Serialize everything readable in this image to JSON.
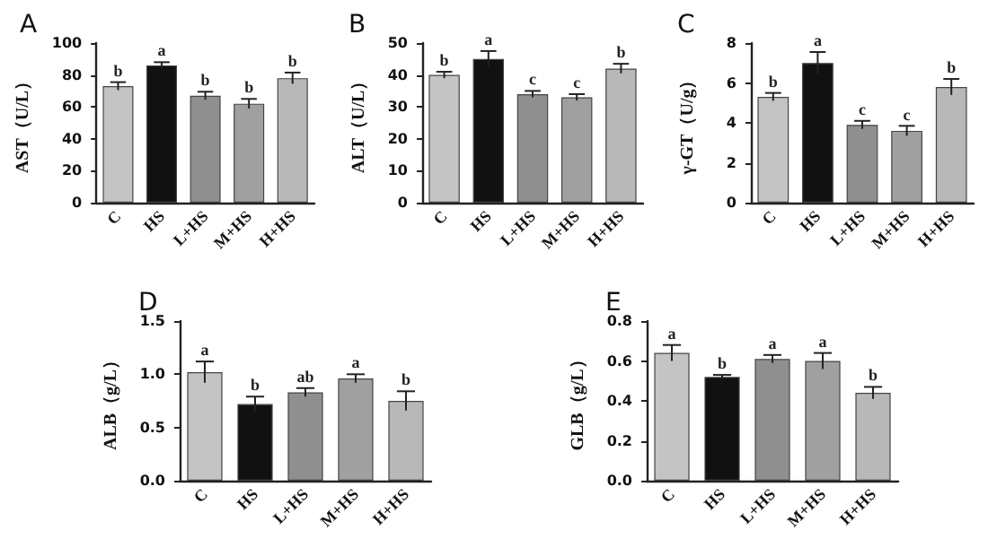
{
  "chart_data": [
    {
      "type": "bar",
      "title": "A",
      "ylabel": "AST（U/L）",
      "categories": [
        "C",
        "HS",
        "L+HS",
        "M+HS",
        "H+HS"
      ],
      "values": [
        73,
        86,
        67,
        62,
        78
      ],
      "errors": [
        2.5,
        2,
        2.5,
        3,
        3.5
      ],
      "colors": [
        "#c4c4c4",
        "#111111",
        "#8f8f8f",
        "#a0a0a0",
        "#b8b8b8"
      ],
      "ylim": [
        0,
        100
      ],
      "yticks": [
        0,
        20,
        40,
        60,
        80,
        100
      ],
      "annotations": [
        {
          "text": "b",
          "x": "C",
          "y": 75.5
        },
        {
          "text": "a",
          "x": "HS",
          "y": 88
        },
        {
          "text": "b",
          "x": "L+HS",
          "y": 69.5
        },
        {
          "text": "b",
          "x": "M+HS",
          "y": 65
        },
        {
          "text": "b",
          "x": "H+HS",
          "y": 81.5
        }
      ]
    },
    {
      "type": "bar",
      "title": "B",
      "ylabel": "ALT（U/L）",
      "categories": [
        "C",
        "HS",
        "L+HS",
        "M+HS",
        "H+HS"
      ],
      "values": [
        40,
        45,
        34,
        33,
        42
      ],
      "errors": [
        1,
        2.5,
        1,
        1,
        1.5
      ],
      "colors": [
        "#c4c4c4",
        "#111111",
        "#8f8f8f",
        "#a0a0a0",
        "#b8b8b8"
      ],
      "ylim": [
        0,
        50
      ],
      "yticks": [
        0,
        10,
        20,
        30,
        40,
        50
      ],
      "annotations": [
        {
          "text": "b",
          "x": "C",
          "y": 41
        },
        {
          "text": "a",
          "x": "HS",
          "y": 47.5
        },
        {
          "text": "c",
          "x": "L+HS",
          "y": 35
        },
        {
          "text": "c",
          "x": "M+HS",
          "y": 34
        },
        {
          "text": "b",
          "x": "H+HS",
          "y": 43.5
        }
      ]
    },
    {
      "type": "bar",
      "title": "C",
      "ylabel": "γ-GT（U/g）",
      "categories": [
        "C",
        "HS",
        "L+HS",
        "M+HS",
        "H+HS"
      ],
      "values": [
        5.3,
        7.0,
        3.9,
        3.6,
        5.8
      ],
      "errors": [
        0.2,
        0.55,
        0.2,
        0.25,
        0.4
      ],
      "colors": [
        "#c4c4c4",
        "#111111",
        "#8f8f8f",
        "#a0a0a0",
        "#b8b8b8"
      ],
      "ylim": [
        0,
        8
      ],
      "yticks": [
        0,
        2,
        4,
        6,
        8
      ],
      "annotations": [
        {
          "text": "b",
          "x": "C",
          "y": 5.5
        },
        {
          "text": "a",
          "x": "HS",
          "y": 7.55
        },
        {
          "text": "c",
          "x": "L+HS",
          "y": 4.1
        },
        {
          "text": "c",
          "x": "M+HS",
          "y": 3.8
        },
        {
          "text": "b",
          "x": "H+HS",
          "y": 6.2
        }
      ]
    },
    {
      "type": "bar",
      "title": "D",
      "ylabel": "ALB（g/L）",
      "categories": [
        "C",
        "HS",
        "L+HS",
        "M+HS",
        "H+HS"
      ],
      "values": [
        1.02,
        0.72,
        0.83,
        0.96,
        0.75
      ],
      "errors": [
        0.1,
        0.07,
        0.04,
        0.04,
        0.09
      ],
      "colors": [
        "#c4c4c4",
        "#111111",
        "#8f8f8f",
        "#a0a0a0",
        "#b8b8b8"
      ],
      "ylim": [
        0,
        1.5
      ],
      "yticks": [
        {
          "value": 0,
          "label": "0.0"
        },
        {
          "value": 0.5,
          "label": "0.5"
        },
        {
          "value": 1,
          "label": "1.0"
        },
        {
          "value": 1.5,
          "label": "1.5"
        }
      ],
      "annotations": [
        {
          "text": "a",
          "x": "C",
          "y": 1.12
        },
        {
          "text": "b",
          "x": "HS",
          "y": 0.79
        },
        {
          "text": "ab",
          "x": "L+HS",
          "y": 0.87
        },
        {
          "text": "a",
          "x": "M+HS",
          "y": 1.0
        },
        {
          "text": "b",
          "x": "H+HS",
          "y": 0.84
        }
      ]
    },
    {
      "type": "bar",
      "title": "E",
      "ylabel": "GLB（g/L）",
      "categories": [
        "C",
        "HS",
        "L+HS",
        "M+HS",
        "H+HS"
      ],
      "values": [
        0.64,
        0.52,
        0.61,
        0.6,
        0.44
      ],
      "errors": [
        0.04,
        0.01,
        0.02,
        0.04,
        0.03
      ],
      "colors": [
        "#c4c4c4",
        "#111111",
        "#8f8f8f",
        "#a0a0a0",
        "#b8b8b8"
      ],
      "ylim": [
        0,
        0.8
      ],
      "yticks": [
        {
          "value": 0,
          "label": "0.0"
        },
        {
          "value": 0.2,
          "label": "0.2"
        },
        {
          "value": 0.4,
          "label": "0.4"
        },
        {
          "value": 0.6,
          "label": "0.6"
        },
        {
          "value": 0.8,
          "label": "0.8"
        }
      ],
      "annotations": [
        {
          "text": "a",
          "x": "C",
          "y": 0.68
        },
        {
          "text": "b",
          "x": "HS",
          "y": 0.53
        },
        {
          "text": "a",
          "x": "L+HS",
          "y": 0.63
        },
        {
          "text": "a",
          "x": "M+HS",
          "y": 0.64
        },
        {
          "text": "b",
          "x": "H+HS",
          "y": 0.47
        }
      ]
    }
  ]
}
